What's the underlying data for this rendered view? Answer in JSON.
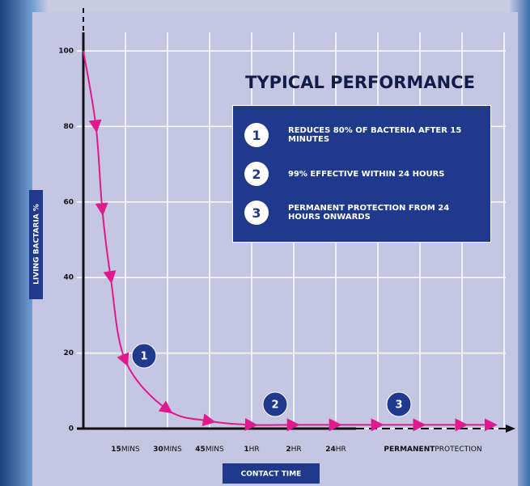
{
  "chart_data": {
    "type": "line",
    "title": "TYPICAL PERFORMANCE",
    "y_label": "LIVING BACTARIA %",
    "x_label": "CONTACT TIME",
    "categories": [
      "15",
      "30",
      "45",
      "1",
      "2",
      "24",
      "PERMANENT"
    ],
    "category_units": [
      "MINS",
      "MINS",
      "MINS",
      "HR",
      "HR",
      "HR",
      "PROTECTION"
    ],
    "x": [
      0,
      0.3,
      0.45,
      0.65,
      1,
      2,
      3,
      4,
      5,
      6,
      7,
      8,
      9,
      9.7
    ],
    "series": [
      {
        "color": "#e0198f",
        "values": [
          100,
          80,
          58,
          40,
          18,
          5,
          2,
          1,
          1,
          1,
          1,
          1,
          1,
          1
        ]
      }
    ],
    "xlim": [
      0,
      10.3
    ],
    "ylim": [
      0,
      100
    ],
    "yticks": [
      0,
      20,
      40,
      60,
      80,
      100
    ],
    "grid": true,
    "annotations": [
      "1",
      "2",
      "3"
    ],
    "legend_items": [
      {
        "number": "1",
        "text": "REDUCES 80% OF BACTERIA AFTER 15 MINUTES"
      },
      {
        "number": "2",
        "text": "99% EFFECTIVE WITHIN 24 HOURS"
      },
      {
        "number": "3",
        "text": "PERMANENT PROTECTION FROM 24 HOURS ONWARDS"
      }
    ]
  }
}
